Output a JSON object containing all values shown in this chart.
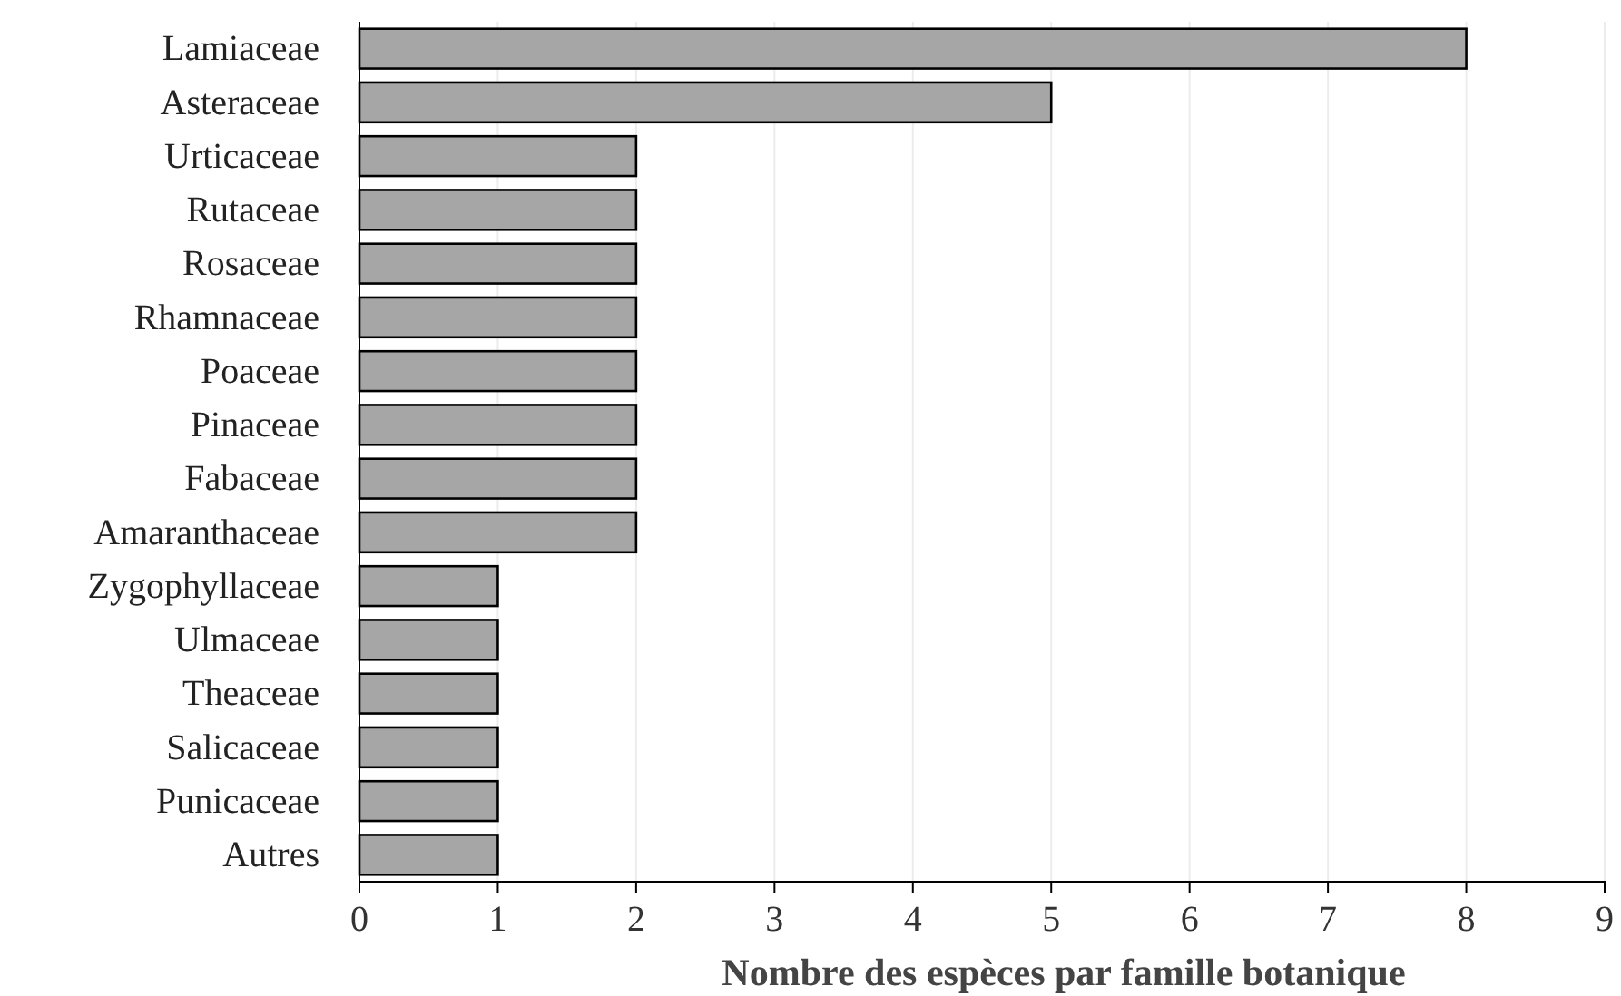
{
  "chart_data": {
    "type": "bar",
    "orientation": "horizontal",
    "xlabel": "Nombre des espèces par famille botanique",
    "categories": [
      "Lamiaceae",
      "Asteraceae",
      "Urticaceae",
      "Rutaceae",
      "Rosaceae",
      "Rhamnaceae",
      "Poaceae",
      "Pinaceae",
      "Fabaceae",
      "Amaranthaceae",
      "Zygophyllaceae",
      "Ulmaceae",
      "Theaceae",
      "Salicaceae",
      "Punicaceae",
      "Autres"
    ],
    "values": [
      8,
      5,
      2,
      2,
      2,
      2,
      2,
      2,
      2,
      2,
      1,
      1,
      1,
      1,
      1,
      1
    ],
    "color": "#a6a6a6",
    "xlim": [
      0,
      9
    ],
    "xticks": [
      0,
      1,
      2,
      3,
      4,
      5,
      6,
      7,
      8,
      9
    ],
    "grid": "x"
  }
}
